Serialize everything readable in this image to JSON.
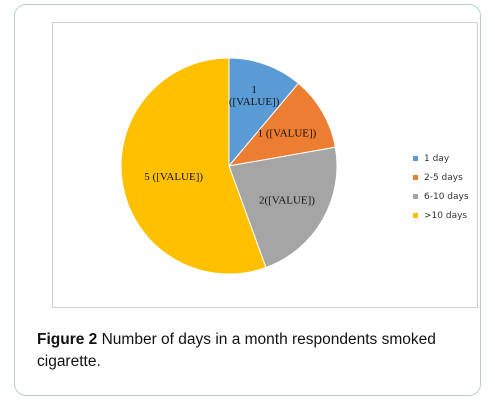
{
  "caption": {
    "label": "Figure 2",
    "text": " Number of days in a month respondents smoked cigarette."
  },
  "chart_data": {
    "type": "pie",
    "title": "",
    "categories": [
      "1 day",
      "2-5 days",
      "6-10 days",
      ">10 days"
    ],
    "values": [
      1,
      1,
      2,
      5
    ],
    "slice_labels": [
      "1 ([VALUE])",
      "1 ([VALUE])",
      "2([VALUE])",
      "5 ([VALUE])"
    ],
    "colors": [
      "#5b9bd5",
      "#ed7d31",
      "#a5a5a5",
      "#ffc000"
    ],
    "start_angle_deg": 0,
    "direction": "clockwise",
    "legend_position": "right",
    "legend": [
      "1 day",
      "2-5 days",
      "6-10 days",
      ">10 days"
    ]
  }
}
